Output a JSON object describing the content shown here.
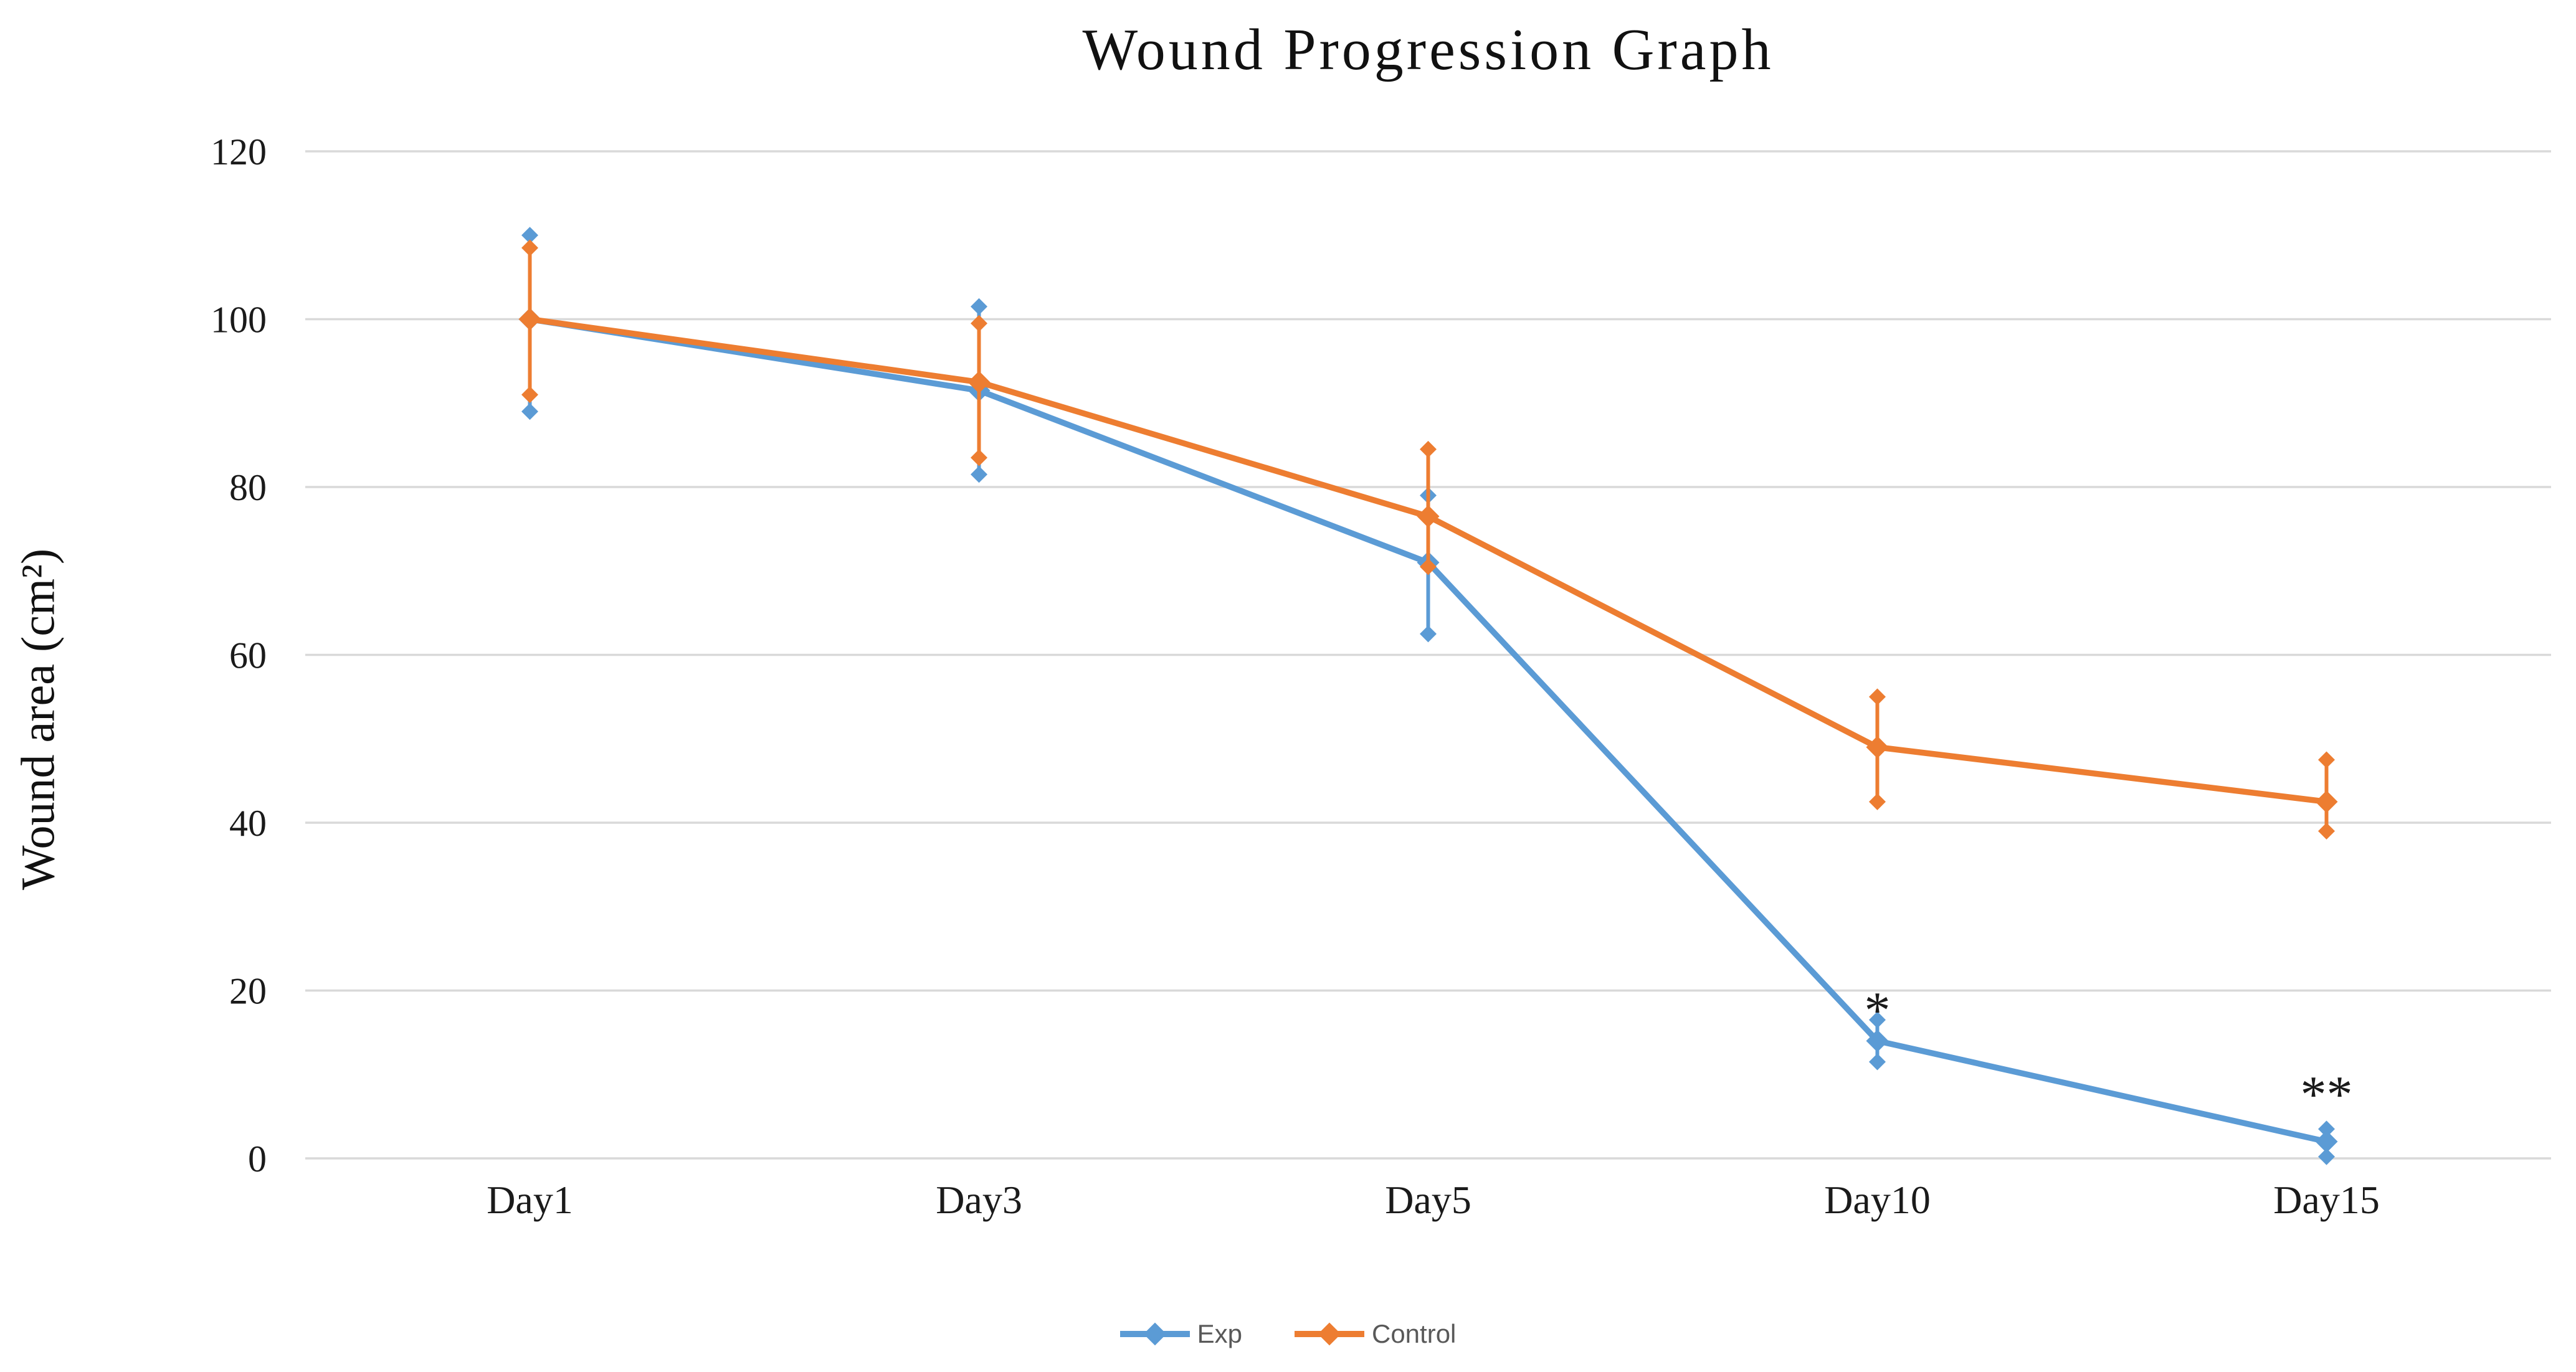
{
  "chart_data": {
    "type": "line",
    "title": "Wound Progression Graph",
    "ylabel": "Wound area (cm²)",
    "xlabel": "",
    "categories": [
      "Day1",
      "Day3",
      "Day5",
      "Day10",
      "Day15"
    ],
    "series": [
      {
        "name": "Exp",
        "color": "#5B9BD5",
        "values": [
          100,
          91.5,
          71,
          14,
          2
        ],
        "error_upper": [
          110,
          101.5,
          79,
          16.5,
          3.5
        ],
        "error_lower": [
          89,
          81.5,
          62.5,
          11.5,
          0.2
        ]
      },
      {
        "name": "Control",
        "color": "#ED7D31",
        "values": [
          100,
          92.5,
          76.5,
          49,
          42.5
        ],
        "error_upper": [
          108.5,
          99.5,
          84.5,
          55,
          47.5
        ],
        "error_lower": [
          91,
          83.5,
          70.5,
          42.5,
          39
        ]
      }
    ],
    "ylim": [
      0,
      120
    ],
    "yticks": [
      0,
      20,
      40,
      60,
      80,
      100,
      120
    ],
    "grid": true,
    "legend_position": "bottom-center",
    "annotations": [
      {
        "text": "*",
        "category": "Day10",
        "value": 19.5
      },
      {
        "text": "**",
        "category": "Day15",
        "value": 9.5
      }
    ],
    "colors": {
      "gridline": "#D9D9D9",
      "text": "#1A1A1A",
      "legend_text": "#595959"
    }
  }
}
